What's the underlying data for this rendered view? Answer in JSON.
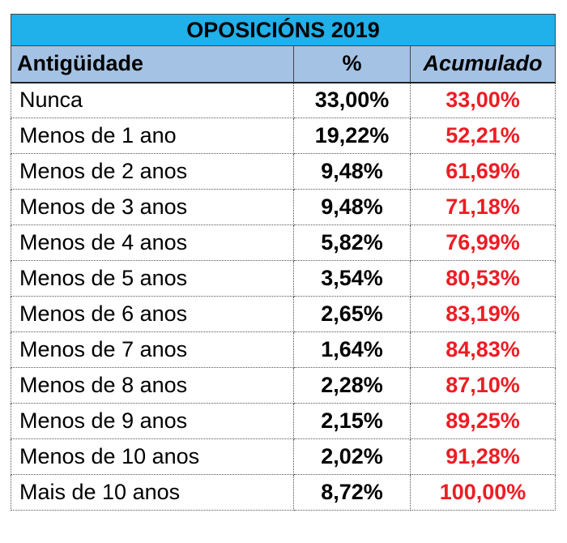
{
  "title": "OPOSICIÓNS 2019",
  "headers": {
    "label": "Antigüidade",
    "pct": "%",
    "acc": "Acumulado"
  },
  "rows": [
    {
      "label": "Nunca",
      "pct": "33,00%",
      "acc": "33,00%"
    },
    {
      "label": "Menos de 1 ano",
      "pct": "19,22%",
      "acc": "52,21%"
    },
    {
      "label": "Menos de 2 anos",
      "pct": "9,48%",
      "acc": "61,69%"
    },
    {
      "label": "Menos de 3 anos",
      "pct": "9,48%",
      "acc": "71,18%"
    },
    {
      "label": "Menos de 4 anos",
      "pct": "5,82%",
      "acc": "76,99%"
    },
    {
      "label": "Menos de 5 anos",
      "pct": "3,54%",
      "acc": "80,53%"
    },
    {
      "label": "Menos de 6 anos",
      "pct": "2,65%",
      "acc": "83,19%"
    },
    {
      "label": "Menos de 7 anos",
      "pct": "1,64%",
      "acc": "84,83%"
    },
    {
      "label": "Menos de 8 anos",
      "pct": "2,28%",
      "acc": "87,10%"
    },
    {
      "label": "Menos de 9 anos",
      "pct": "2,15%",
      "acc": "89,25%"
    },
    {
      "label": "Menos de 10 anos",
      "pct": "2,02%",
      "acc": "91,28%"
    },
    {
      "label": "Mais de 10 anos",
      "pct": "8,72%",
      "acc": "100,00%"
    }
  ],
  "colors": {
    "title_bg": "#20b0ea",
    "header_bg": "#a4c2e4",
    "accumulated_text": "#ee1c24"
  }
}
